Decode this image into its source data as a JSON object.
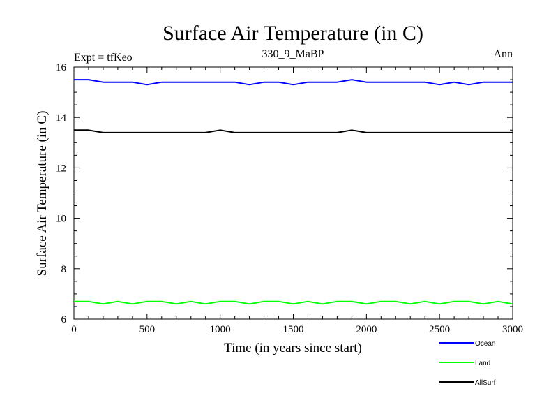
{
  "chart_data": {
    "type": "line",
    "title": "Surface Air Temperature (in C)",
    "subtitle_left": "Expt = tfKeo",
    "subtitle_center": "330_9_MaBP",
    "subtitle_right": "Ann",
    "xlabel": "Time (in years since start)",
    "ylabel": "Surface Air Temperature (in C)",
    "xlim": [
      0,
      3000
    ],
    "ylim": [
      6,
      16
    ],
    "xticks": [
      0,
      500,
      1000,
      1500,
      2000,
      2500,
      3000
    ],
    "yticks": [
      6,
      8,
      10,
      12,
      14,
      16
    ],
    "grid": false,
    "legend_position": "bottom-right, below plot",
    "series": [
      {
        "name": "Ocean",
        "color": "#0000ff",
        "x": [
          0,
          100,
          200,
          300,
          400,
          500,
          600,
          700,
          800,
          900,
          1000,
          1100,
          1200,
          1300,
          1400,
          1500,
          1600,
          1700,
          1800,
          1900,
          2000,
          2100,
          2200,
          2300,
          2400,
          2500,
          2600,
          2700,
          2800,
          2900,
          3000
        ],
        "y": [
          15.5,
          15.5,
          15.4,
          15.4,
          15.4,
          15.3,
          15.4,
          15.4,
          15.4,
          15.4,
          15.4,
          15.4,
          15.3,
          15.4,
          15.4,
          15.3,
          15.4,
          15.4,
          15.4,
          15.5,
          15.4,
          15.4,
          15.4,
          15.4,
          15.4,
          15.3,
          15.4,
          15.3,
          15.4,
          15.4,
          15.4
        ]
      },
      {
        "name": "Land",
        "color": "#00ff00",
        "x": [
          0,
          100,
          200,
          300,
          400,
          500,
          600,
          700,
          800,
          900,
          1000,
          1100,
          1200,
          1300,
          1400,
          1500,
          1600,
          1700,
          1800,
          1900,
          2000,
          2100,
          2200,
          2300,
          2400,
          2500,
          2600,
          2700,
          2800,
          2900,
          3000
        ],
        "y": [
          6.7,
          6.7,
          6.6,
          6.7,
          6.6,
          6.7,
          6.7,
          6.6,
          6.7,
          6.6,
          6.7,
          6.7,
          6.6,
          6.7,
          6.7,
          6.6,
          6.7,
          6.6,
          6.7,
          6.7,
          6.6,
          6.7,
          6.7,
          6.6,
          6.7,
          6.6,
          6.7,
          6.7,
          6.6,
          6.7,
          6.6
        ]
      },
      {
        "name": "AllSurf",
        "color": "#000000",
        "x": [
          0,
          100,
          200,
          300,
          400,
          500,
          600,
          700,
          800,
          900,
          1000,
          1100,
          1200,
          1300,
          1400,
          1500,
          1600,
          1700,
          1800,
          1900,
          2000,
          2100,
          2200,
          2300,
          2400,
          2500,
          2600,
          2700,
          2800,
          2900,
          3000
        ],
        "y": [
          13.5,
          13.5,
          13.4,
          13.4,
          13.4,
          13.4,
          13.4,
          13.4,
          13.4,
          13.4,
          13.5,
          13.4,
          13.4,
          13.4,
          13.4,
          13.4,
          13.4,
          13.4,
          13.4,
          13.5,
          13.4,
          13.4,
          13.4,
          13.4,
          13.4,
          13.4,
          13.4,
          13.4,
          13.4,
          13.4,
          13.4
        ]
      }
    ]
  }
}
